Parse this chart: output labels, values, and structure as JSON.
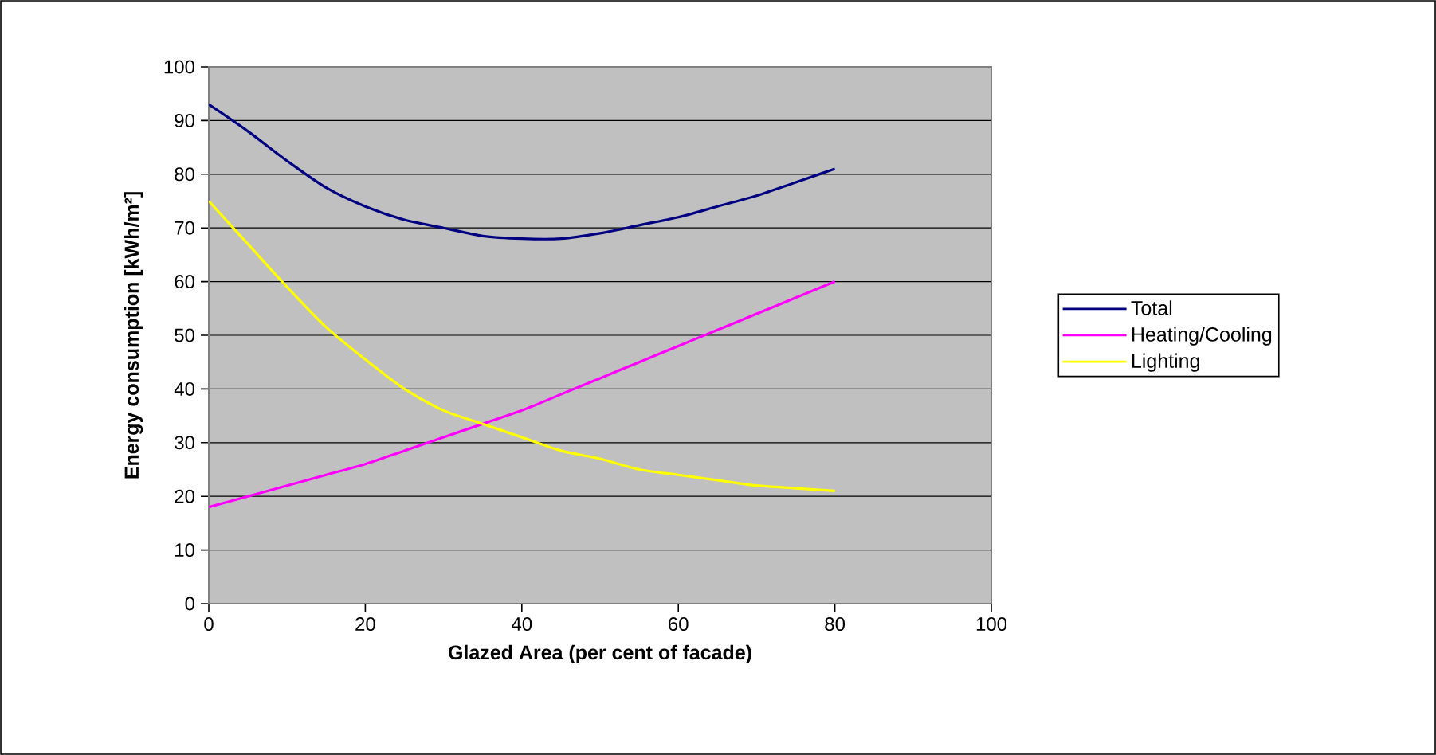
{
  "chart_data": {
    "type": "line",
    "xlabel": "Glazed Area (per cent of facade)",
    "ylabel": "Energy consumption [kWh/m²]",
    "x": [
      0,
      5,
      10,
      15,
      20,
      25,
      30,
      35,
      40,
      45,
      50,
      55,
      60,
      65,
      70,
      75,
      80
    ],
    "series": [
      {
        "name": "Total",
        "color": "#000080",
        "values": [
          93,
          88,
          82.5,
          77.5,
          74,
          71.5,
          70,
          68.5,
          68,
          68,
          69,
          70.5,
          72,
          74,
          76,
          78.5,
          81
        ]
      },
      {
        "name": "Heating/Cooling",
        "color": "#ff00ff",
        "values": [
          18,
          20,
          22,
          24,
          26,
          28.5,
          31,
          33.5,
          36,
          39,
          42,
          45,
          48,
          51,
          54,
          57,
          60
        ]
      },
      {
        "name": "Lighting",
        "color": "#ffff00",
        "values": [
          75,
          67,
          59,
          51.5,
          45.5,
          40,
          36,
          33.5,
          31,
          28.5,
          27,
          25,
          24,
          23,
          22,
          21.5,
          21
        ]
      }
    ],
    "xlim": [
      0,
      100
    ],
    "xticks": [
      0,
      20,
      40,
      60,
      80,
      100
    ],
    "ylim": [
      0,
      100
    ],
    "yticks": [
      0,
      10,
      20,
      30,
      40,
      50,
      60,
      70,
      80,
      90,
      100
    ],
    "grid": "y",
    "legend": "right",
    "marker": "none",
    "line_style": "solid"
  }
}
